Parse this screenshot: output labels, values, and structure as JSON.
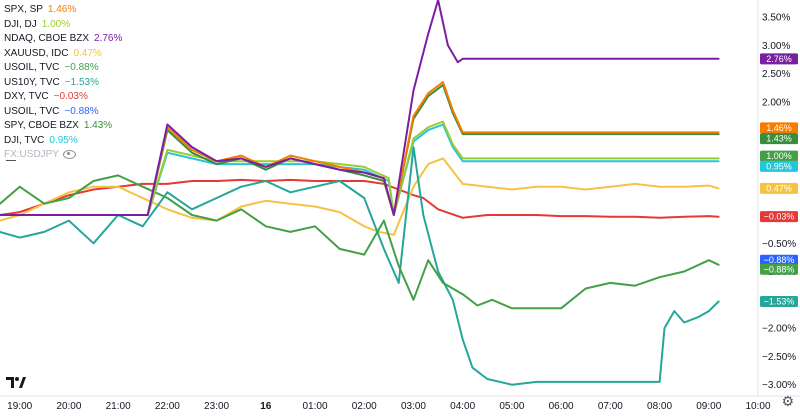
{
  "legend": [
    {
      "symbol": "SPX, SP",
      "value": "1.46%",
      "color": "#f57c00"
    },
    {
      "symbol": "DJI, DJ",
      "value": "1.00%",
      "color": "#9acd32"
    },
    {
      "symbol": "NDAQ, CBOE BZX",
      "value": "2.76%",
      "color": "#7b1fa2"
    },
    {
      "symbol": "XAUUSD, IDC",
      "value": "0.47%",
      "color": "#f5c242"
    },
    {
      "symbol": "USOIL, TVC",
      "value": "−0.88%",
      "color": "#43a047"
    },
    {
      "symbol": "US10Y, TVC",
      "value": "−1.53%",
      "color": "#26a69a"
    },
    {
      "symbol": "DXY, TVC",
      "value": "−0.03%",
      "color": "#e53935"
    },
    {
      "symbol": "USOIL, TVC",
      "value": "−0.88%",
      "color": "#2962ff"
    },
    {
      "symbol": "SPY, CBOE BZX",
      "value": "1.43%",
      "color": "#388e3c"
    },
    {
      "symbol": "DJI, TVC",
      "value": "0.95%",
      "color": "#26c6da"
    },
    {
      "symbol": "FX:USDJPY",
      "value": "",
      "color": "#b2b5be",
      "hidden": true
    }
  ],
  "chart_data": {
    "type": "line",
    "y_unit": "%",
    "ylim": [
      -3.2,
      3.8
    ],
    "y_ticks": [
      "3.50%",
      "3.00%",
      "2.50%",
      "2.00%",
      "1.50%",
      "1.00%",
      "0.50%",
      "0.00%",
      "−0.50%",
      "−1.00%",
      "−1.50%",
      "−2.00%",
      "−2.50%",
      "−3.00%"
    ],
    "y_tick_values": [
      3.5,
      3.0,
      2.5,
      2.0,
      1.5,
      1.0,
      0.5,
      0.0,
      -0.5,
      -1.0,
      -1.5,
      -2.0,
      -2.5,
      -3.0
    ],
    "x_ticks": [
      "19:00",
      "20:00",
      "21:00",
      "22:00",
      "23:00",
      "16",
      "01:00",
      "02:00",
      "03:00",
      "04:00",
      "05:00",
      "06:00",
      "07:00",
      "08:00",
      "09:00",
      "10:00"
    ],
    "x_tick_values": [
      19,
      20,
      21,
      22,
      23,
      24,
      25,
      26,
      27,
      28,
      29,
      30,
      31,
      32,
      33,
      34
    ],
    "x_bold": "16",
    "xlim": [
      18.6,
      34.0
    ],
    "series": [
      {
        "name": "DXY, TVC",
        "color": "#e53935",
        "last_label": "−0.03%",
        "x": [
          18.6,
          19.0,
          19.5,
          20.0,
          20.5,
          21.0,
          21.5,
          22.0,
          22.5,
          23.0,
          23.5,
          24.0,
          24.5,
          25.0,
          25.5,
          26.0,
          26.4,
          26.7,
          27.0,
          27.2,
          27.5,
          28.0,
          28.5,
          29.0,
          29.5,
          30.0,
          30.5,
          31.0,
          31.5,
          32.0,
          32.5,
          33.0,
          33.2
        ],
        "y": [
          0.0,
          0.05,
          0.2,
          0.35,
          0.45,
          0.5,
          0.55,
          0.55,
          0.6,
          0.6,
          0.62,
          0.6,
          0.62,
          0.6,
          0.6,
          0.6,
          0.55,
          0.45,
          0.35,
          0.3,
          0.1,
          -0.05,
          0.0,
          0.0,
          0.0,
          -0.02,
          -0.02,
          -0.03,
          -0.03,
          -0.05,
          -0.03,
          -0.02,
          -0.03
        ]
      },
      {
        "name": "XAUUSD, IDC",
        "color": "#f5c242",
        "last_label": "0.47%",
        "x": [
          18.6,
          19.0,
          19.5,
          20.0,
          20.5,
          21.0,
          21.5,
          22.0,
          22.5,
          23.0,
          23.5,
          24.0,
          24.5,
          25.0,
          25.5,
          26.0,
          26.3,
          26.6,
          27.0,
          27.3,
          27.6,
          28.0,
          28.5,
          29.0,
          29.5,
          30.0,
          30.5,
          31.0,
          31.5,
          32.0,
          32.5,
          33.0,
          33.2
        ],
        "y": [
          -0.1,
          0.0,
          0.2,
          0.4,
          0.5,
          0.5,
          0.3,
          0.1,
          -0.05,
          -0.1,
          0.15,
          0.25,
          0.2,
          0.15,
          0.05,
          -0.2,
          -0.3,
          -0.35,
          0.5,
          0.9,
          1.0,
          0.55,
          0.5,
          0.45,
          0.5,
          0.5,
          0.45,
          0.5,
          0.55,
          0.5,
          0.5,
          0.52,
          0.47
        ]
      },
      {
        "name": "US10Y, TVC",
        "color": "#26a69a",
        "last_label": "−1.53%",
        "x": [
          18.6,
          19.0,
          19.5,
          20.0,
          20.5,
          21.0,
          21.5,
          22.0,
          22.5,
          23.0,
          23.5,
          24.0,
          24.5,
          25.0,
          25.5,
          26.0,
          26.4,
          26.7,
          27.0,
          27.2,
          27.5,
          27.8,
          28.0,
          28.2,
          28.5,
          29.0,
          29.5,
          30.0,
          30.5,
          31.0,
          31.5,
          32.0,
          32.1,
          32.3,
          32.5,
          32.8,
          33.0,
          33.2
        ],
        "y": [
          -0.3,
          -0.4,
          -0.3,
          -0.1,
          -0.5,
          0.0,
          -0.2,
          0.4,
          0.1,
          0.3,
          0.5,
          0.6,
          0.4,
          0.5,
          0.6,
          0.3,
          -0.6,
          -1.2,
          1.2,
          0.0,
          -1.0,
          -1.5,
          -2.2,
          -2.7,
          -2.9,
          -3.0,
          -2.95,
          -2.95,
          -2.95,
          -2.95,
          -2.95,
          -2.95,
          -2.0,
          -1.7,
          -1.9,
          -1.8,
          -1.7,
          -1.53
        ]
      },
      {
        "name": "USOIL, TVC",
        "color": "#43a047",
        "last_label": "−0.88%",
        "x": [
          18.6,
          19.0,
          19.5,
          20.0,
          20.5,
          21.0,
          21.5,
          22.0,
          22.5,
          23.0,
          23.5,
          24.0,
          24.5,
          25.0,
          25.5,
          26.0,
          26.4,
          26.7,
          27.0,
          27.3,
          27.6,
          28.0,
          28.3,
          28.6,
          29.0,
          29.5,
          30.0,
          30.5,
          31.0,
          31.5,
          32.0,
          32.5,
          33.0,
          33.2
        ],
        "y": [
          0.2,
          0.5,
          0.2,
          0.3,
          0.6,
          0.7,
          0.5,
          0.3,
          0.0,
          -0.1,
          0.1,
          -0.2,
          -0.3,
          -0.2,
          -0.6,
          -0.7,
          -0.1,
          -0.9,
          -1.5,
          -0.8,
          -1.2,
          -1.4,
          -1.6,
          -1.5,
          -1.65,
          -1.65,
          -1.65,
          -1.3,
          -1.2,
          -1.25,
          -1.1,
          -1.0,
          -0.8,
          -0.88
        ]
      },
      {
        "name": "DJI, TVC",
        "color": "#26c6da",
        "last_label": "0.95%",
        "x": [
          18.6,
          21.0,
          21.6,
          22.0,
          23.0,
          24.0,
          25.0,
          26.0,
          26.5,
          26.6,
          27.0,
          27.3,
          27.6,
          27.8,
          28.0,
          29.0,
          30.0,
          31.0,
          32.0,
          33.0,
          33.2
        ],
        "y": [
          0.0,
          0.0,
          0.0,
          1.1,
          0.9,
          0.9,
          0.9,
          0.8,
          0.6,
          0.0,
          1.3,
          1.5,
          1.6,
          1.2,
          0.95,
          0.95,
          0.95,
          0.95,
          0.95,
          0.95,
          0.95
        ]
      },
      {
        "name": "DJI, DJ",
        "color": "#9acd32",
        "last_label": "1.00%",
        "x": [
          18.6,
          21.0,
          21.6,
          22.0,
          23.0,
          24.0,
          25.0,
          26.0,
          26.5,
          26.6,
          27.0,
          27.3,
          27.6,
          27.8,
          28.0,
          29.0,
          30.0,
          31.0,
          32.0,
          33.0,
          33.2
        ],
        "y": [
          0.0,
          0.0,
          0.0,
          1.15,
          0.95,
          0.95,
          0.95,
          0.85,
          0.65,
          0.0,
          1.35,
          1.55,
          1.65,
          1.25,
          1.0,
          1.0,
          1.0,
          1.0,
          1.0,
          1.0,
          1.0
        ]
      },
      {
        "name": "SPY, CBOE BZX",
        "color": "#388e3c",
        "last_label": "1.43%",
        "x": [
          18.6,
          21.0,
          21.6,
          22.0,
          22.5,
          23.0,
          23.5,
          24.0,
          24.5,
          25.0,
          25.5,
          26.0,
          26.4,
          26.6,
          27.0,
          27.3,
          27.6,
          27.8,
          28.0,
          29.0,
          30.0,
          31.0,
          32.0,
          33.0,
          33.2
        ],
        "y": [
          0.0,
          0.0,
          0.0,
          1.5,
          1.1,
          0.9,
          1.0,
          0.8,
          1.0,
          0.9,
          0.8,
          0.7,
          0.6,
          0.0,
          1.7,
          2.1,
          2.3,
          1.8,
          1.43,
          1.43,
          1.43,
          1.43,
          1.43,
          1.43,
          1.43
        ]
      },
      {
        "name": "SPX, SP",
        "color": "#f57c00",
        "last_label": "1.46%",
        "x": [
          18.6,
          21.0,
          21.6,
          22.0,
          22.5,
          23.0,
          23.5,
          24.0,
          24.5,
          25.0,
          25.5,
          26.0,
          26.4,
          26.6,
          27.0,
          27.3,
          27.6,
          27.8,
          28.0,
          29.0,
          30.0,
          31.0,
          32.0,
          33.0,
          33.2
        ],
        "y": [
          0.0,
          0.0,
          0.0,
          1.55,
          1.15,
          0.95,
          1.05,
          0.85,
          1.05,
          0.95,
          0.85,
          0.75,
          0.65,
          0.0,
          1.75,
          2.15,
          2.35,
          1.85,
          1.46,
          1.46,
          1.46,
          1.46,
          1.46,
          1.46,
          1.46
        ]
      },
      {
        "name": "NDAQ, CBOE BZX",
        "color": "#7b1fa2",
        "last_label": "2.76%",
        "x": [
          18.6,
          21.0,
          21.6,
          22.0,
          22.5,
          23.0,
          23.5,
          24.0,
          24.5,
          25.0,
          25.5,
          26.0,
          26.4,
          26.6,
          27.0,
          27.3,
          27.5,
          27.7,
          27.9,
          28.0,
          29.0,
          30.0,
          31.0,
          32.0,
          33.0,
          33.2
        ],
        "y": [
          0.0,
          0.0,
          0.0,
          1.6,
          1.2,
          0.95,
          1.0,
          0.85,
          1.0,
          0.9,
          0.8,
          0.75,
          0.65,
          0.0,
          2.2,
          3.2,
          3.8,
          3.0,
          2.7,
          2.76,
          2.76,
          2.76,
          2.76,
          2.76,
          2.76,
          2.76
        ]
      }
    ],
    "badges": [
      {
        "label": "2.76%",
        "color": "#7b1fa2",
        "y": 2.76
      },
      {
        "label": "1.46%",
        "color": "#f57c00",
        "y": 1.54
      },
      {
        "label": "1.43%",
        "color": "#388e3c",
        "y": 1.35
      },
      {
        "label": "1.00%",
        "color": "#43a047",
        "y": 1.04
      },
      {
        "label": "0.95%",
        "color": "#26c6da",
        "y": 0.86
      },
      {
        "label": "0.47%",
        "color": "#f5c242",
        "y": 0.47
      },
      {
        "label": "−0.03%",
        "color": "#e53935",
        "y": -0.03
      },
      {
        "label": "−0.88%",
        "color": "#2962ff",
        "y": -0.8
      },
      {
        "label": "−0.88%",
        "color": "#43a047",
        "y": -0.96
      },
      {
        "label": "−1.53%",
        "color": "#26a69a",
        "y": -1.53
      }
    ]
  }
}
